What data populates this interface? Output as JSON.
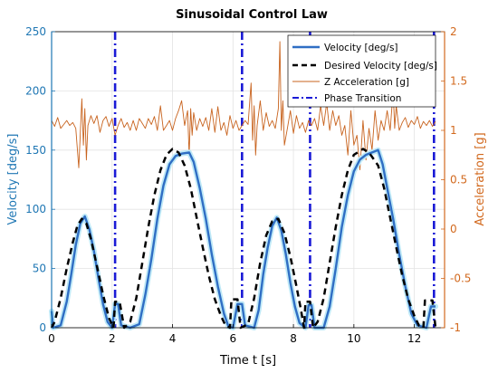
{
  "chart_data": {
    "type": "line",
    "title": "Sinusoidal Control Law",
    "xlabel": "Time t [s]",
    "ylabel_left": "Velocity [deg/s]",
    "ylabel_right": "Acceleration [g]",
    "xlim": [
      0,
      13
    ],
    "ylim_left": [
      0,
      250
    ],
    "ylim_right": [
      -1,
      2
    ],
    "x_ticks": [
      "0",
      "2",
      "4",
      "6",
      "8",
      "10",
      "12"
    ],
    "y_left_ticks": [
      "0",
      "50",
      "100",
      "150",
      "200",
      "250"
    ],
    "y_right_ticks": [
      "-1",
      "-0.5",
      "0",
      "0.5",
      "1",
      "1.5",
      "2"
    ],
    "colors": {
      "velocity": "#2f6ec4",
      "velocity_glow": "#bfe9f7",
      "desired": "#000000",
      "accel": "#c8631e",
      "phase": "#1a1ad6",
      "left_axis": "#1f77b4",
      "right_axis": "#d2691e",
      "grid": "#e3e3e3"
    },
    "legend": {
      "placement": "top-right",
      "items": [
        {
          "label": "Velocity [deg/s]",
          "style": "solid-blue"
        },
        {
          "label": "Desired Velocity [deg/s]",
          "style": "dashed-black"
        },
        {
          "label": "Z Acceleration [g]",
          "style": "thin-orange"
        },
        {
          "label": "Phase Transition",
          "style": "dashdot-blue"
        }
      ]
    },
    "grid": true,
    "series": [
      {
        "name": "Desired Velocity [deg/s]",
        "axis": "left",
        "points": [
          [
            0,
            0
          ],
          [
            0.1,
            5
          ],
          [
            0.3,
            25
          ],
          [
            0.5,
            50
          ],
          [
            0.7,
            72
          ],
          [
            0.85,
            86
          ],
          [
            1.0,
            92
          ],
          [
            1.15,
            88
          ],
          [
            1.3,
            75
          ],
          [
            1.5,
            52
          ],
          [
            1.7,
            28
          ],
          [
            1.9,
            8
          ],
          [
            2.05,
            0
          ],
          [
            2.1,
            22
          ],
          [
            2.25,
            22
          ],
          [
            2.4,
            0
          ],
          [
            2.6,
            5
          ],
          [
            2.8,
            25
          ],
          [
            3.0,
            55
          ],
          [
            3.2,
            85
          ],
          [
            3.4,
            112
          ],
          [
            3.6,
            133
          ],
          [
            3.8,
            146
          ],
          [
            4.0,
            151
          ],
          [
            4.2,
            148
          ],
          [
            4.4,
            137
          ],
          [
            4.6,
            118
          ],
          [
            4.8,
            93
          ],
          [
            5.0,
            68
          ],
          [
            5.2,
            44
          ],
          [
            5.4,
            24
          ],
          [
            5.6,
            10
          ],
          [
            5.75,
            2
          ],
          [
            5.9,
            0
          ],
          [
            5.95,
            24
          ],
          [
            6.15,
            24
          ],
          [
            6.25,
            0
          ],
          [
            6.5,
            3
          ],
          [
            6.7,
            25
          ],
          [
            6.9,
            55
          ],
          [
            7.1,
            78
          ],
          [
            7.3,
            90
          ],
          [
            7.5,
            92
          ],
          [
            7.7,
            80
          ],
          [
            7.9,
            60
          ],
          [
            8.1,
            35
          ],
          [
            8.25,
            15
          ],
          [
            8.35,
            0
          ],
          [
            8.4,
            22
          ],
          [
            8.55,
            22
          ],
          [
            8.65,
            0
          ],
          [
            8.8,
            5
          ],
          [
            9.0,
            25
          ],
          [
            9.2,
            55
          ],
          [
            9.4,
            85
          ],
          [
            9.6,
            112
          ],
          [
            9.8,
            133
          ],
          [
            10.0,
            146
          ],
          [
            10.3,
            151
          ],
          [
            10.5,
            148
          ],
          [
            10.8,
            137
          ],
          [
            11.0,
            118
          ],
          [
            11.2,
            93
          ],
          [
            11.4,
            68
          ],
          [
            11.6,
            44
          ],
          [
            11.8,
            24
          ],
          [
            12.0,
            10
          ],
          [
            12.15,
            2
          ],
          [
            12.3,
            0
          ],
          [
            12.35,
            23
          ],
          [
            12.6,
            23
          ],
          [
            12.7,
            0
          ]
        ]
      },
      {
        "name": "Velocity [deg/s]",
        "axis": "left",
        "points": [
          [
            0,
            14
          ],
          [
            0.05,
            0
          ],
          [
            0.3,
            2
          ],
          [
            0.5,
            22
          ],
          [
            0.65,
            45
          ],
          [
            0.8,
            70
          ],
          [
            0.95,
            88
          ],
          [
            1.1,
            94
          ],
          [
            1.25,
            83
          ],
          [
            1.4,
            65
          ],
          [
            1.55,
            42
          ],
          [
            1.7,
            20
          ],
          [
            1.85,
            5
          ],
          [
            2.0,
            0
          ],
          [
            2.1,
            20
          ],
          [
            2.2,
            20
          ],
          [
            2.3,
            2
          ],
          [
            2.6,
            0
          ],
          [
            2.9,
            3
          ],
          [
            3.1,
            28
          ],
          [
            3.3,
            58
          ],
          [
            3.5,
            92
          ],
          [
            3.7,
            120
          ],
          [
            3.9,
            138
          ],
          [
            4.1,
            145
          ],
          [
            4.3,
            147
          ],
          [
            4.55,
            148
          ],
          [
            4.7,
            140
          ],
          [
            4.9,
            118
          ],
          [
            5.1,
            92
          ],
          [
            5.3,
            62
          ],
          [
            5.5,
            35
          ],
          [
            5.7,
            12
          ],
          [
            5.85,
            1
          ],
          [
            6.0,
            0
          ],
          [
            6.15,
            20
          ],
          [
            6.3,
            20
          ],
          [
            6.4,
            2
          ],
          [
            6.7,
            0
          ],
          [
            6.85,
            15
          ],
          [
            7.0,
            45
          ],
          [
            7.15,
            68
          ],
          [
            7.3,
            86
          ],
          [
            7.45,
            93
          ],
          [
            7.6,
            82
          ],
          [
            7.75,
            62
          ],
          [
            7.9,
            38
          ],
          [
            8.05,
            18
          ],
          [
            8.2,
            4
          ],
          [
            8.4,
            0
          ],
          [
            8.5,
            19
          ],
          [
            8.6,
            19
          ],
          [
            8.7,
            0
          ],
          [
            9.0,
            0
          ],
          [
            9.2,
            18
          ],
          [
            9.4,
            50
          ],
          [
            9.6,
            85
          ],
          [
            9.8,
            112
          ],
          [
            10.0,
            132
          ],
          [
            10.2,
            142
          ],
          [
            10.4,
            146
          ],
          [
            10.6,
            148
          ],
          [
            10.8,
            150
          ],
          [
            10.95,
            138
          ],
          [
            11.1,
            118
          ],
          [
            11.3,
            92
          ],
          [
            11.5,
            62
          ],
          [
            11.7,
            35
          ],
          [
            11.9,
            12
          ],
          [
            12.1,
            2
          ],
          [
            12.4,
            0
          ],
          [
            12.55,
            18
          ],
          [
            12.7,
            18
          ]
        ]
      },
      {
        "name": "Z Acceleration [g]",
        "axis": "right",
        "points": [
          [
            0,
            1.1
          ],
          [
            0.1,
            1.04
          ],
          [
            0.2,
            1.13
          ],
          [
            0.3,
            1.02
          ],
          [
            0.4,
            1.06
          ],
          [
            0.5,
            1.1
          ],
          [
            0.6,
            1.05
          ],
          [
            0.7,
            1.08
          ],
          [
            0.8,
            1.02
          ],
          [
            0.9,
            0.62
          ],
          [
            1.0,
            1.32
          ],
          [
            1.05,
            0.85
          ],
          [
            1.1,
            1.22
          ],
          [
            1.15,
            0.7
          ],
          [
            1.2,
            1.05
          ],
          [
            1.3,
            1.15
          ],
          [
            1.4,
            1.07
          ],
          [
            1.5,
            1.15
          ],
          [
            1.6,
            0.98
          ],
          [
            1.7,
            1.1
          ],
          [
            1.8,
            1.14
          ],
          [
            1.9,
            1.04
          ],
          [
            2.0,
            1.12
          ],
          [
            2.1,
            0.95
          ],
          [
            2.2,
            1.05
          ],
          [
            2.3,
            1.12
          ],
          [
            2.4,
            1.03
          ],
          [
            2.5,
            1.08
          ],
          [
            2.6,
            1.0
          ],
          [
            2.7,
            1.1
          ],
          [
            2.8,
            1.0
          ],
          [
            2.9,
            1.12
          ],
          [
            3.0,
            1.07
          ],
          [
            3.1,
            1.02
          ],
          [
            3.2,
            1.12
          ],
          [
            3.3,
            1.06
          ],
          [
            3.4,
            1.14
          ],
          [
            3.5,
            1.0
          ],
          [
            3.6,
            1.25
          ],
          [
            3.7,
            1.0
          ],
          [
            3.8,
            1.05
          ],
          [
            3.9,
            1.1
          ],
          [
            4.0,
            1.0
          ],
          [
            4.1,
            1.12
          ],
          [
            4.2,
            1.2
          ],
          [
            4.3,
            1.3
          ],
          [
            4.4,
            1.05
          ],
          [
            4.5,
            1.2
          ],
          [
            4.55,
            0.75
          ],
          [
            4.6,
            1.22
          ],
          [
            4.65,
            0.95
          ],
          [
            4.7,
            1.18
          ],
          [
            4.8,
            1.0
          ],
          [
            4.9,
            1.12
          ],
          [
            5.0,
            1.04
          ],
          [
            5.1,
            1.13
          ],
          [
            5.2,
            1.0
          ],
          [
            5.3,
            1.22
          ],
          [
            5.4,
            0.98
          ],
          [
            5.5,
            1.24
          ],
          [
            5.6,
            1.0
          ],
          [
            5.7,
            1.08
          ],
          [
            5.8,
            0.95
          ],
          [
            5.9,
            1.15
          ],
          [
            6.0,
            1.02
          ],
          [
            6.1,
            1.1
          ],
          [
            6.2,
            1.0
          ],
          [
            6.3,
            1.05
          ],
          [
            6.4,
            1.1
          ],
          [
            6.5,
            1.06
          ],
          [
            6.6,
            1.48
          ],
          [
            6.65,
            0.9
          ],
          [
            6.7,
            1.25
          ],
          [
            6.75,
            0.75
          ],
          [
            6.8,
            1.05
          ],
          [
            6.9,
            1.3
          ],
          [
            7.0,
            1.0
          ],
          [
            7.1,
            1.18
          ],
          [
            7.2,
            1.04
          ],
          [
            7.3,
            1.1
          ],
          [
            7.4,
            1.02
          ],
          [
            7.5,
            1.22
          ],
          [
            7.55,
            1.9
          ],
          [
            7.6,
            1.0
          ],
          [
            7.65,
            1.3
          ],
          [
            7.7,
            0.85
          ],
          [
            7.8,
            1.02
          ],
          [
            7.9,
            1.2
          ],
          [
            8.0,
            0.97
          ],
          [
            8.1,
            1.15
          ],
          [
            8.2,
            1.02
          ],
          [
            8.3,
            1.08
          ],
          [
            8.4,
            0.98
          ],
          [
            8.5,
            1.1
          ],
          [
            8.6,
            1.05
          ],
          [
            8.7,
            1.12
          ],
          [
            8.8,
            1.0
          ],
          [
            8.9,
            1.25
          ],
          [
            9.0,
            1.05
          ],
          [
            9.1,
            1.28
          ],
          [
            9.2,
            1.0
          ],
          [
            9.3,
            1.2
          ],
          [
            9.4,
            1.05
          ],
          [
            9.5,
            1.15
          ],
          [
            9.6,
            0.95
          ],
          [
            9.7,
            1.05
          ],
          [
            9.8,
            0.75
          ],
          [
            9.9,
            1.2
          ],
          [
            10.0,
            0.85
          ],
          [
            10.1,
            0.95
          ],
          [
            10.2,
            0.6
          ],
          [
            10.3,
            1.1
          ],
          [
            10.4,
            0.7
          ],
          [
            10.5,
            1.02
          ],
          [
            10.6,
            0.8
          ],
          [
            10.7,
            1.2
          ],
          [
            10.8,
            0.9
          ],
          [
            10.9,
            1.1
          ],
          [
            11.0,
            1.0
          ],
          [
            11.1,
            1.2
          ],
          [
            11.2,
            1.0
          ],
          [
            11.3,
            1.4
          ],
          [
            11.35,
            1.02
          ],
          [
            11.4,
            1.25
          ],
          [
            11.5,
            1.0
          ],
          [
            11.6,
            1.08
          ],
          [
            11.7,
            1.13
          ],
          [
            11.8,
            1.03
          ],
          [
            11.9,
            1.1
          ],
          [
            12.0,
            1.06
          ],
          [
            12.1,
            1.14
          ],
          [
            12.2,
            1.02
          ],
          [
            12.3,
            1.09
          ],
          [
            12.4,
            1.05
          ],
          [
            12.5,
            1.1
          ],
          [
            12.6,
            1.04
          ],
          [
            12.7,
            1.09
          ]
        ]
      }
    ],
    "phase_transitions": [
      2.1,
      6.3,
      8.55,
      12.65
    ]
  }
}
